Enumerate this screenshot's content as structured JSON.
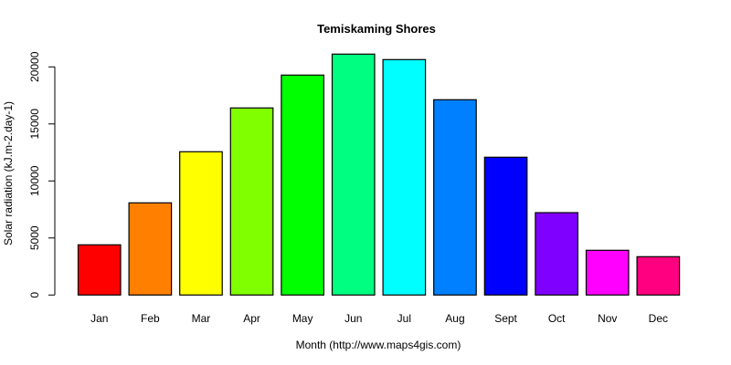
{
  "chart_data": {
    "type": "bar",
    "title": "Temiskaming Shores",
    "xlabel": "Month (http://www.maps4gis.com)",
    "ylabel": "Solar radiation (kJ.m-2.day-1)",
    "categories": [
      "Jan",
      "Feb",
      "Mar",
      "Apr",
      "May",
      "Jun",
      "Jul",
      "Aug",
      "Sept",
      "Oct",
      "Nov",
      "Dec"
    ],
    "values": [
      4400,
      8080,
      12560,
      16400,
      19280,
      21120,
      20640,
      17120,
      12080,
      7220,
      3920,
      3360
    ],
    "colors": [
      "#FF0000",
      "#FF8000",
      "#FFFF00",
      "#80FF00",
      "#00FF00",
      "#00FF80",
      "#00FFFF",
      "#0080FF",
      "#0000FF",
      "#8000FF",
      "#FF00FF",
      "#FF0080"
    ],
    "ylim": [
      0,
      21120
    ],
    "yticks": [
      0,
      5000,
      10000,
      15000,
      20000
    ],
    "ytick_labels": [
      "0",
      "5000",
      "10000",
      "15000",
      "20000"
    ],
    "grid": false,
    "legend": null
  }
}
